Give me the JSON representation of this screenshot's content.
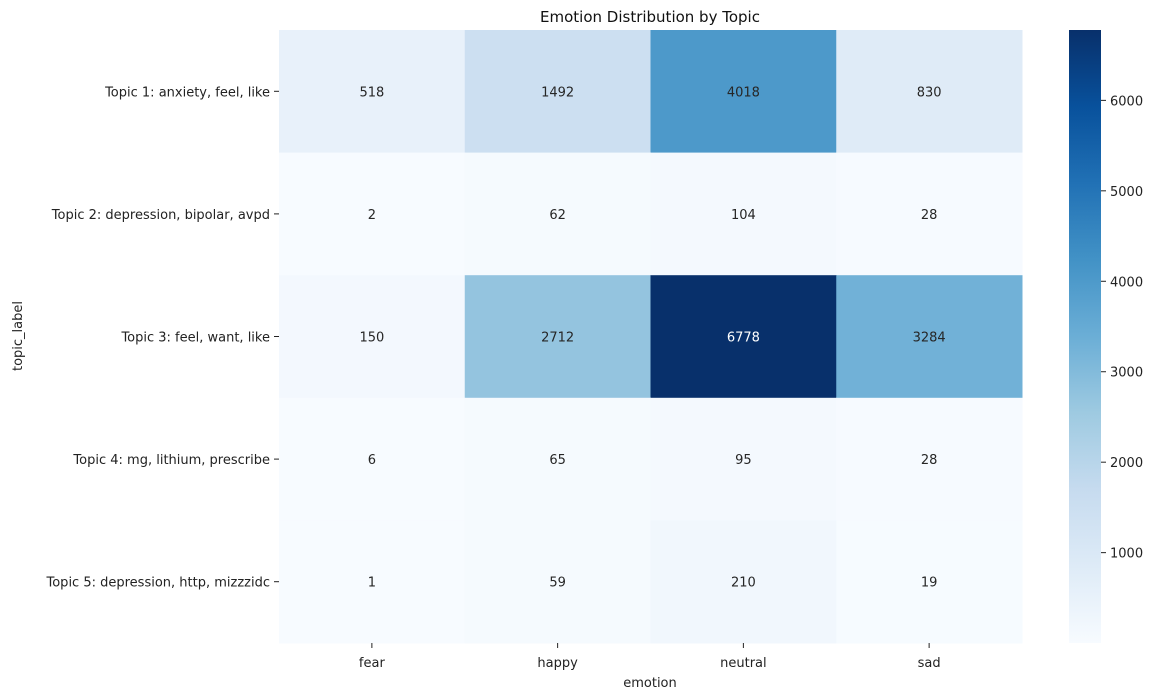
{
  "chart_data": {
    "type": "heatmap",
    "title": "Emotion Distribution by Topic",
    "xlabel": "emotion",
    "ylabel": "topic_label",
    "columns": [
      "fear",
      "happy",
      "neutral",
      "sad"
    ],
    "rows": [
      "Topic 1: anxiety, feel, like",
      "Topic 2: depression, bipolar, avpd",
      "Topic 3: feel, want, like",
      "Topic 4: mg, lithium, prescribe",
      "Topic 5: depression, http, mizzzidc"
    ],
    "values": [
      [
        518,
        1492,
        4018,
        830
      ],
      [
        2,
        62,
        104,
        28
      ],
      [
        150,
        2712,
        6778,
        3284
      ],
      [
        6,
        65,
        95,
        28
      ],
      [
        1,
        59,
        210,
        19
      ]
    ],
    "colorbar": {
      "colormap": "Blues",
      "vmin": 1,
      "vmax": 6778,
      "ticks": [
        1000,
        2000,
        3000,
        4000,
        5000,
        6000
      ]
    }
  }
}
